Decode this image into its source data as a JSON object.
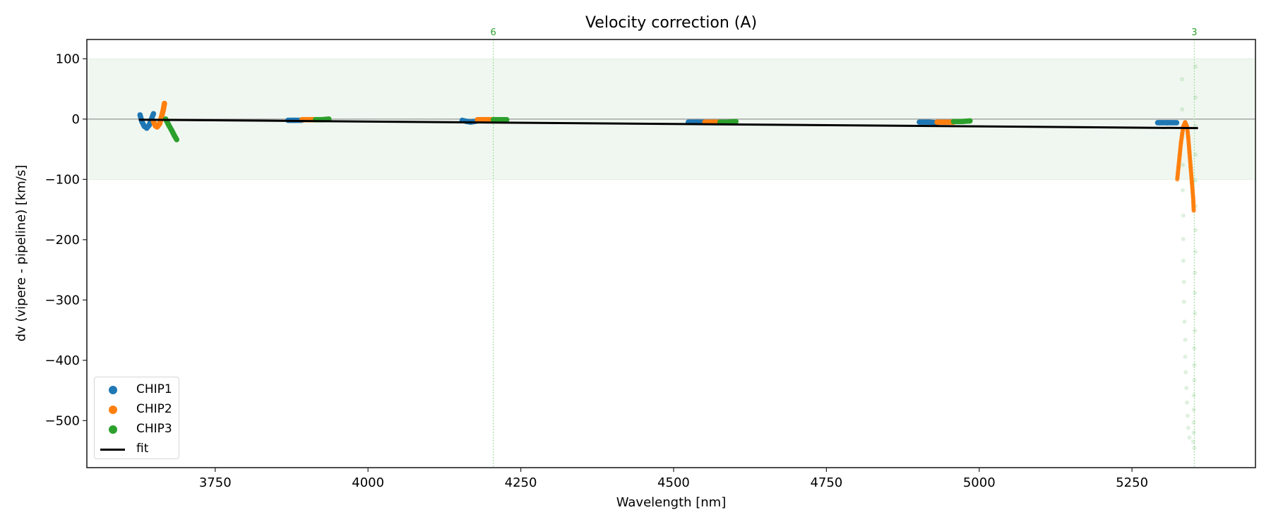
{
  "chart_data": {
    "type": "scatter",
    "title": "Velocity correction (A)",
    "xlabel": "Wavelength [nm]",
    "ylabel": "dv (vipere - pipeline) [km/s]",
    "xlim": [
      3540,
      5452
    ],
    "ylim": [
      -578,
      132
    ],
    "xticks": [
      3750,
      4000,
      4250,
      4500,
      4750,
      5000,
      5250
    ],
    "yticks": [
      100,
      0,
      -100,
      -200,
      -300,
      -400,
      -500
    ],
    "grid": false,
    "legend_position": "lower left",
    "shaded_band": {
      "ymin": -100,
      "ymax": 100,
      "color": "#f0f7f0"
    },
    "zero_line": {
      "y": 0,
      "color": "#808080"
    },
    "vlines": [
      {
        "x": 4205,
        "label": "6",
        "color": "#2ca02c",
        "style": "dotted"
      },
      {
        "x": 5352,
        "label": "3",
        "color": "#2ca02c",
        "style": "dotted"
      }
    ],
    "series": [
      {
        "name": "CHIP1",
        "color": "#1f77b4",
        "marker": "o",
        "segments": [
          [
            [
              3627,
              7
            ],
            [
              3630,
              -4
            ],
            [
              3634,
              -12
            ],
            [
              3638,
              -15
            ],
            [
              3642,
              -10
            ],
            [
              3645,
              -2
            ],
            [
              3649,
              9
            ]
          ],
          [
            [
              3869,
              -2
            ],
            [
              3880,
              -2
            ],
            [
              3892,
              -2
            ]
          ],
          [
            [
              4154,
              -2
            ],
            [
              4162,
              -4
            ],
            [
              4168,
              -5
            ],
            [
              4179,
              -3
            ]
          ],
          [
            [
              4524,
              -5
            ],
            [
              4538,
              -5
            ],
            [
              4551,
              -5
            ]
          ],
          [
            [
              4902,
              -5
            ],
            [
              4916,
              -5
            ],
            [
              4931,
              -6
            ]
          ],
          [
            [
              5292,
              -6
            ],
            [
              5308,
              -6
            ],
            [
              5323,
              -6
            ]
          ]
        ]
      },
      {
        "name": "CHIP2",
        "color": "#ff7f0e",
        "marker": "o",
        "segments": [
          [
            [
              3649,
              -4
            ],
            [
              3652,
              -11
            ],
            [
              3655,
              -13
            ],
            [
              3659,
              -8
            ],
            [
              3662,
              3
            ],
            [
              3665,
              15
            ],
            [
              3667,
              26
            ]
          ],
          [
            [
              3892,
              -1
            ],
            [
              3903,
              -1
            ],
            [
              3914,
              -1
            ]
          ],
          [
            [
              4179,
              -1
            ],
            [
              4192,
              -1
            ],
            [
              4205,
              -1
            ]
          ],
          [
            [
              4551,
              -5
            ],
            [
              4563,
              -5
            ],
            [
              4576,
              -5
            ]
          ],
          [
            [
              4931,
              -5
            ],
            [
              4945,
              -5
            ],
            [
              4958,
              -5
            ]
          ],
          [
            [
              5324,
              -100
            ],
            [
              5326,
              -80
            ],
            [
              5328,
              -60
            ],
            [
              5330,
              -40
            ],
            [
              5332,
              -25
            ],
            [
              5334,
              -12
            ],
            [
              5337,
              -5
            ],
            [
              5340,
              -12
            ],
            [
              5342,
              -30
            ],
            [
              5344,
              -55
            ],
            [
              5346,
              -80
            ],
            [
              5348,
              -105
            ],
            [
              5350,
              -130
            ],
            [
              5351,
              -152
            ]
          ]
        ]
      },
      {
        "name": "CHIP3",
        "color": "#2ca02c",
        "marker": "o",
        "segments": [
          [
            [
              3669,
              0
            ],
            [
              3674,
              -10
            ],
            [
              3679,
              -19
            ],
            [
              3683,
              -27
            ],
            [
              3687,
              -34
            ]
          ],
          [
            [
              3914,
              -1
            ],
            [
              3925,
              -1
            ],
            [
              3936,
              0
            ]
          ],
          [
            [
              4205,
              -1
            ],
            [
              4216,
              -1
            ],
            [
              4227,
              -1
            ]
          ],
          [
            [
              4576,
              -5
            ],
            [
              4589,
              -5
            ],
            [
              4602,
              -4
            ]
          ],
          [
            [
              4958,
              -4
            ],
            [
              4972,
              -4
            ],
            [
              4985,
              -3
            ]
          ]
        ],
        "outliers_faint": [
          [
            5354,
            87
          ],
          [
            5332,
            66
          ],
          [
            5354,
            36
          ],
          [
            5332,
            16
          ],
          [
            5354,
            -12
          ],
          [
            5332,
            -31
          ],
          [
            5354,
            -59
          ],
          [
            5333,
            -76
          ],
          [
            5354,
            -102
          ],
          [
            5333,
            -118
          ],
          [
            5354,
            -144
          ],
          [
            5334,
            -160
          ],
          [
            5354,
            -184
          ],
          [
            5334,
            -199
          ],
          [
            5354,
            -220
          ],
          [
            5334,
            -235
          ],
          [
            5353,
            -255
          ],
          [
            5335,
            -270
          ],
          [
            5353,
            -288
          ],
          [
            5335,
            -303
          ],
          [
            5353,
            -322
          ],
          [
            5336,
            -336
          ],
          [
            5353,
            -351
          ],
          [
            5337,
            -366
          ],
          [
            5352,
            -380
          ],
          [
            5337,
            -394
          ],
          [
            5352,
            -408
          ],
          [
            5338,
            -420
          ],
          [
            5352,
            -433
          ],
          [
            5339,
            -446
          ],
          [
            5351,
            -458
          ],
          [
            5340,
            -470
          ],
          [
            5351,
            -482
          ],
          [
            5341,
            -492
          ],
          [
            5351,
            -503
          ],
          [
            5342,
            -512
          ],
          [
            5351,
            -520
          ],
          [
            5344,
            -528
          ],
          [
            5350,
            -535
          ],
          [
            5352,
            -545
          ]
        ]
      },
      {
        "name": "fit",
        "color": "#000000",
        "type": "line",
        "points": [
          [
            3625,
            -1
          ],
          [
            5358,
            -15
          ]
        ]
      }
    ]
  },
  "annotations": {
    "vline_labels": [
      "6",
      "3"
    ]
  }
}
